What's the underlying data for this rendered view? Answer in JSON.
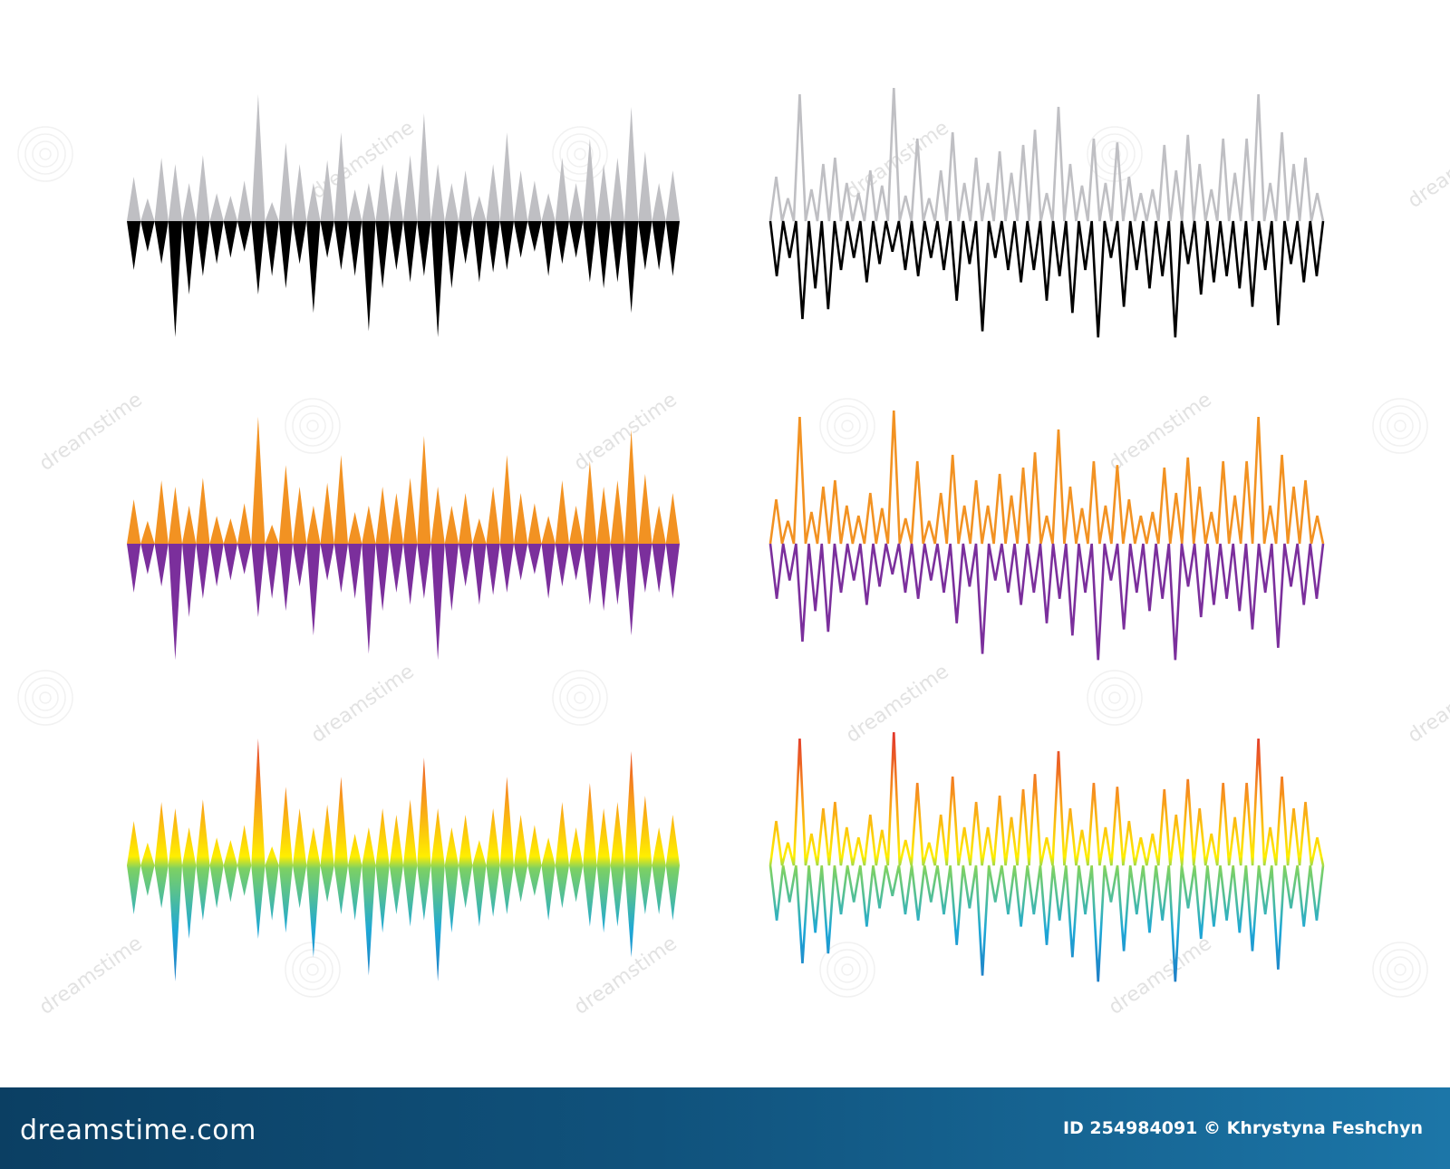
{
  "panels": [
    {
      "id": "black-gray-filled",
      "style": "filled",
      "top_color": "#bfbfc3",
      "bottom_color": "#000000"
    },
    {
      "id": "black-gray-outline",
      "style": "outline",
      "top_color": "#bfbfc3",
      "bottom_color": "#000000"
    },
    {
      "id": "orange-purple-filled",
      "style": "filled",
      "top_color": "#f29222",
      "bottom_color": "#7b2f9c"
    },
    {
      "id": "orange-purple-outline",
      "style": "outline",
      "top_color": "#f29222",
      "bottom_color": "#7b2f9c"
    },
    {
      "id": "rainbow-filled",
      "style": "filled",
      "gradient": [
        "#e2382b",
        "#f7941d",
        "#ffee00",
        "#7dd163",
        "#1ea8d6",
        "#1e7fc6"
      ]
    },
    {
      "id": "rainbow-outline",
      "style": "outline",
      "gradient": [
        "#e2382b",
        "#f7941d",
        "#ffee00",
        "#7dd163",
        "#1ea8d6",
        "#1e7fc6"
      ]
    }
  ],
  "filled_wave": {
    "up": [
      0.35,
      0.18,
      0.5,
      0.45,
      0.3,
      0.52,
      0.22,
      0.2,
      0.32,
      1.0,
      0.15,
      0.62,
      0.45,
      0.3,
      0.48,
      0.7,
      0.25,
      0.3,
      0.45,
      0.4,
      0.52,
      0.85,
      0.45,
      0.3,
      0.4,
      0.2,
      0.45,
      0.7,
      0.4,
      0.32,
      0.22,
      0.5,
      0.3,
      0.65,
      0.45,
      0.5,
      0.9,
      0.55,
      0.3,
      0.4
    ],
    "down": [
      0.4,
      0.25,
      0.35,
      0.95,
      0.6,
      0.45,
      0.35,
      0.3,
      0.25,
      0.6,
      0.45,
      0.55,
      0.35,
      0.75,
      0.3,
      0.4,
      0.45,
      0.9,
      0.55,
      0.4,
      0.5,
      0.45,
      0.95,
      0.55,
      0.35,
      0.5,
      0.42,
      0.4,
      0.3,
      0.25,
      0.45,
      0.35,
      0.3,
      0.5,
      0.55,
      0.5,
      0.75,
      0.4,
      0.4,
      0.45
    ]
  },
  "outline_wave": {
    "up": [
      0.35,
      0.18,
      1.0,
      0.25,
      0.45,
      0.5,
      0.3,
      0.22,
      0.4,
      0.28,
      1.05,
      0.2,
      0.65,
      0.18,
      0.4,
      0.7,
      0.3,
      0.5,
      0.3,
      0.55,
      0.38,
      0.6,
      0.72,
      0.22,
      0.9,
      0.45,
      0.28,
      0.65,
      0.3,
      0.62,
      0.35,
      0.22,
      0.25,
      0.6,
      0.4,
      0.68,
      0.45,
      0.25,
      0.65,
      0.38,
      0.65,
      1.0,
      0.3,
      0.7,
      0.45,
      0.5,
      0.22
    ],
    "down": [
      0.45,
      0.3,
      0.8,
      0.55,
      0.72,
      0.4,
      0.3,
      0.5,
      0.35,
      0.25,
      0.4,
      0.45,
      0.3,
      0.4,
      0.65,
      0.35,
      0.9,
      0.3,
      0.4,
      0.5,
      0.4,
      0.65,
      0.45,
      0.75,
      0.4,
      0.95,
      0.3,
      0.7,
      0.4,
      0.55,
      0.45,
      0.95,
      0.35,
      0.6,
      0.5,
      0.45,
      0.55,
      0.7,
      0.4,
      0.85,
      0.35,
      0.5,
      0.45
    ]
  },
  "watermark": {
    "text": "dreamstime"
  },
  "footer": {
    "brand": "dreamstime.com",
    "credit": "ID 254984091 © Khrystyna Feshchyn"
  }
}
